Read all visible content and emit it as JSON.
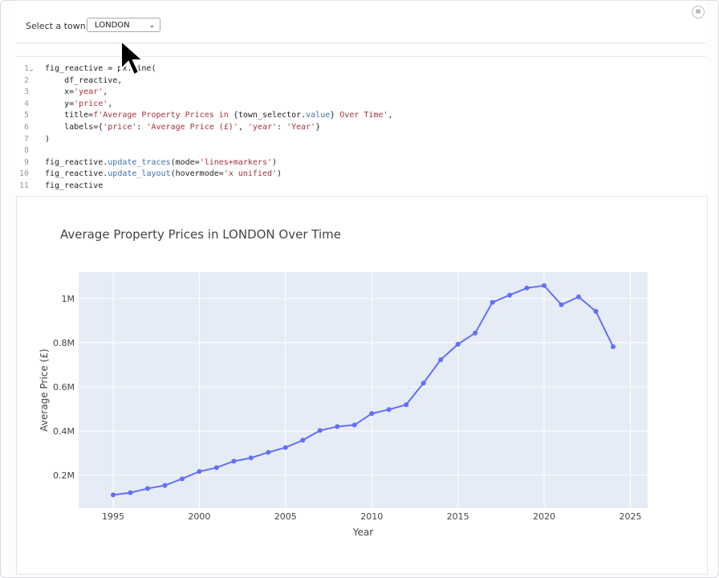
{
  "widget": {
    "label": "Select a town:",
    "selected": "LONDON"
  },
  "code_lines": [
    [
      [
        "fig_reactive = px.line(",
        ""
      ]
    ],
    [
      [
        "    df_reactive,",
        ""
      ]
    ],
    [
      [
        "    x=",
        ""
      ],
      [
        "'year'",
        "s"
      ],
      [
        ",",
        ""
      ]
    ],
    [
      [
        "    y=",
        ""
      ],
      [
        "'price'",
        "s"
      ],
      [
        ",",
        ""
      ]
    ],
    [
      [
        "    title=",
        ""
      ],
      [
        "f'Average Property Prices in ",
        "s"
      ],
      [
        "{town_selector.",
        ""
      ],
      [
        "value",
        "a"
      ],
      [
        "} ",
        ""
      ],
      [
        "Over Time'",
        "s"
      ],
      [
        ",",
        ""
      ]
    ],
    [
      [
        "    labels={",
        ""
      ],
      [
        "'price'",
        "s"
      ],
      [
        ": ",
        ""
      ],
      [
        "'Average Price (£)'",
        "s"
      ],
      [
        ", ",
        ""
      ],
      [
        "'year'",
        "s"
      ],
      [
        ": ",
        ""
      ],
      [
        "'Year'",
        "s"
      ],
      [
        "}",
        ""
      ]
    ],
    [
      [
        ")",
        ""
      ]
    ],
    [
      [
        "",
        ""
      ]
    ],
    [
      [
        "fig_reactive.",
        ""
      ],
      [
        "update_traces",
        "a"
      ],
      [
        "(mode=",
        ""
      ],
      [
        "'lines+markers'",
        "s"
      ],
      [
        ")",
        ""
      ]
    ],
    [
      [
        "fig_reactive.",
        ""
      ],
      [
        "update_layout",
        "a"
      ],
      [
        "(hovermode=",
        ""
      ],
      [
        "'x unified'",
        "s"
      ],
      [
        ")",
        ""
      ]
    ],
    [
      [
        "fig_reactive",
        ""
      ]
    ]
  ],
  "chart_data": {
    "type": "line",
    "title": "Average Property Prices in LONDON Over Time",
    "xlabel": "Year",
    "ylabel": "Average Price (£)",
    "xlim": [
      1993,
      2026
    ],
    "ylim": [
      0.05,
      1.12
    ],
    "xticks": [
      1995,
      2000,
      2005,
      2010,
      2015,
      2020,
      2025
    ],
    "yticks": [
      {
        "v": 0.2,
        "label": "0.2M"
      },
      {
        "v": 0.4,
        "label": "0.4M"
      },
      {
        "v": 0.6,
        "label": "0.6M"
      },
      {
        "v": 0.8,
        "label": "0.8M"
      },
      {
        "v": 1.0,
        "label": "1M"
      }
    ],
    "grid": true,
    "color": "#636efa",
    "x": [
      1995,
      1996,
      1997,
      1998,
      1999,
      2000,
      2001,
      2002,
      2003,
      2004,
      2005,
      2006,
      2007,
      2008,
      2009,
      2010,
      2011,
      2012,
      2013,
      2014,
      2015,
      2016,
      2017,
      2018,
      2019,
      2020,
      2021,
      2022,
      2023,
      2024
    ],
    "y_millions": [
      0.11,
      0.12,
      0.139,
      0.153,
      0.183,
      0.216,
      0.234,
      0.263,
      0.278,
      0.303,
      0.325,
      0.358,
      0.402,
      0.42,
      0.427,
      0.479,
      0.497,
      0.519,
      0.617,
      0.723,
      0.793,
      0.844,
      0.983,
      1.016,
      1.048,
      1.059,
      0.972,
      1.008,
      0.942,
      0.782
    ]
  }
}
